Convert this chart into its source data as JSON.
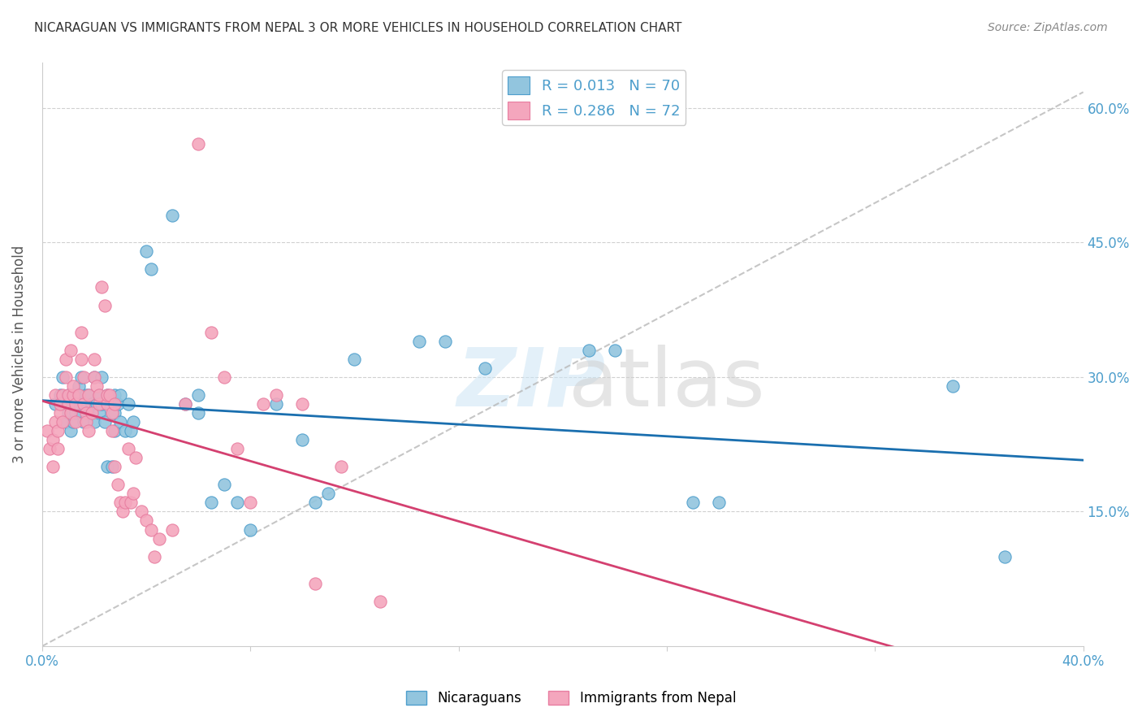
{
  "title": "NICARAGUAN VS IMMIGRANTS FROM NEPAL 3 OR MORE VEHICLES IN HOUSEHOLD CORRELATION CHART",
  "source": "Source: ZipAtlas.com",
  "ylabel": "3 or more Vehicles in Household",
  "ylabel_right_ticks": [
    "60.0%",
    "45.0%",
    "30.0%",
    "15.0%"
  ],
  "ylabel_right_positions": [
    0.6,
    0.45,
    0.3,
    0.15
  ],
  "legend_r1": "R = 0.013",
  "legend_n1": "N = 70",
  "legend_r2": "R = 0.286",
  "legend_n2": "N = 72",
  "color_blue": "#92c5de",
  "color_blue_edge": "#4d9ecc",
  "color_pink": "#f4a6bd",
  "color_pink_edge": "#e87da0",
  "trend_blue": "#1a6faf",
  "trend_pink": "#d44070",
  "xmin": 0.0,
  "xmax": 0.4,
  "ymin": 0.0,
  "ymax": 0.65,
  "blue_scatter_x": [
    0.005,
    0.007,
    0.008,
    0.009,
    0.01,
    0.01,
    0.011,
    0.011,
    0.012,
    0.012,
    0.013,
    0.013,
    0.014,
    0.014,
    0.015,
    0.015,
    0.016,
    0.016,
    0.017,
    0.017,
    0.018,
    0.018,
    0.019,
    0.02,
    0.02,
    0.021,
    0.022,
    0.022,
    0.023,
    0.023,
    0.024,
    0.025,
    0.025,
    0.026,
    0.027,
    0.027,
    0.028,
    0.028,
    0.028,
    0.029,
    0.03,
    0.03,
    0.032,
    0.033,
    0.034,
    0.035,
    0.04,
    0.042,
    0.05,
    0.055,
    0.06,
    0.06,
    0.065,
    0.07,
    0.075,
    0.08,
    0.09,
    0.1,
    0.105,
    0.11,
    0.12,
    0.145,
    0.155,
    0.17,
    0.21,
    0.22,
    0.25,
    0.26,
    0.35,
    0.37
  ],
  "blue_scatter_y": [
    0.27,
    0.28,
    0.3,
    0.25,
    0.28,
    0.26,
    0.27,
    0.24,
    0.28,
    0.25,
    0.28,
    0.26,
    0.27,
    0.29,
    0.3,
    0.26,
    0.27,
    0.25,
    0.27,
    0.28,
    0.26,
    0.28,
    0.27,
    0.25,
    0.3,
    0.27,
    0.26,
    0.28,
    0.3,
    0.27,
    0.25,
    0.2,
    0.28,
    0.27,
    0.26,
    0.2,
    0.28,
    0.26,
    0.24,
    0.27,
    0.28,
    0.25,
    0.24,
    0.27,
    0.24,
    0.25,
    0.44,
    0.42,
    0.48,
    0.27,
    0.28,
    0.26,
    0.16,
    0.18,
    0.16,
    0.13,
    0.27,
    0.23,
    0.16,
    0.17,
    0.32,
    0.34,
    0.34,
    0.31,
    0.33,
    0.33,
    0.16,
    0.16,
    0.29,
    0.1
  ],
  "pink_scatter_x": [
    0.002,
    0.003,
    0.004,
    0.004,
    0.005,
    0.005,
    0.006,
    0.006,
    0.007,
    0.007,
    0.008,
    0.008,
    0.009,
    0.009,
    0.01,
    0.01,
    0.011,
    0.011,
    0.012,
    0.012,
    0.013,
    0.013,
    0.014,
    0.015,
    0.015,
    0.016,
    0.016,
    0.017,
    0.017,
    0.018,
    0.018,
    0.019,
    0.02,
    0.02,
    0.021,
    0.022,
    0.022,
    0.023,
    0.024,
    0.025,
    0.025,
    0.026,
    0.027,
    0.027,
    0.028,
    0.028,
    0.029,
    0.03,
    0.031,
    0.032,
    0.033,
    0.034,
    0.035,
    0.036,
    0.038,
    0.04,
    0.042,
    0.043,
    0.045,
    0.05,
    0.055,
    0.06,
    0.065,
    0.07,
    0.075,
    0.08,
    0.085,
    0.09,
    0.1,
    0.105,
    0.115,
    0.13
  ],
  "pink_scatter_y": [
    0.24,
    0.22,
    0.2,
    0.23,
    0.28,
    0.25,
    0.22,
    0.24,
    0.26,
    0.27,
    0.28,
    0.25,
    0.32,
    0.3,
    0.27,
    0.28,
    0.26,
    0.33,
    0.28,
    0.29,
    0.27,
    0.25,
    0.28,
    0.32,
    0.35,
    0.27,
    0.3,
    0.26,
    0.25,
    0.24,
    0.28,
    0.26,
    0.32,
    0.3,
    0.29,
    0.27,
    0.28,
    0.4,
    0.38,
    0.27,
    0.28,
    0.28,
    0.26,
    0.24,
    0.27,
    0.2,
    0.18,
    0.16,
    0.15,
    0.16,
    0.22,
    0.16,
    0.17,
    0.21,
    0.15,
    0.14,
    0.13,
    0.1,
    0.12,
    0.13,
    0.27,
    0.56,
    0.35,
    0.3,
    0.22,
    0.16,
    0.27,
    0.28,
    0.27,
    0.07,
    0.2,
    0.05
  ]
}
